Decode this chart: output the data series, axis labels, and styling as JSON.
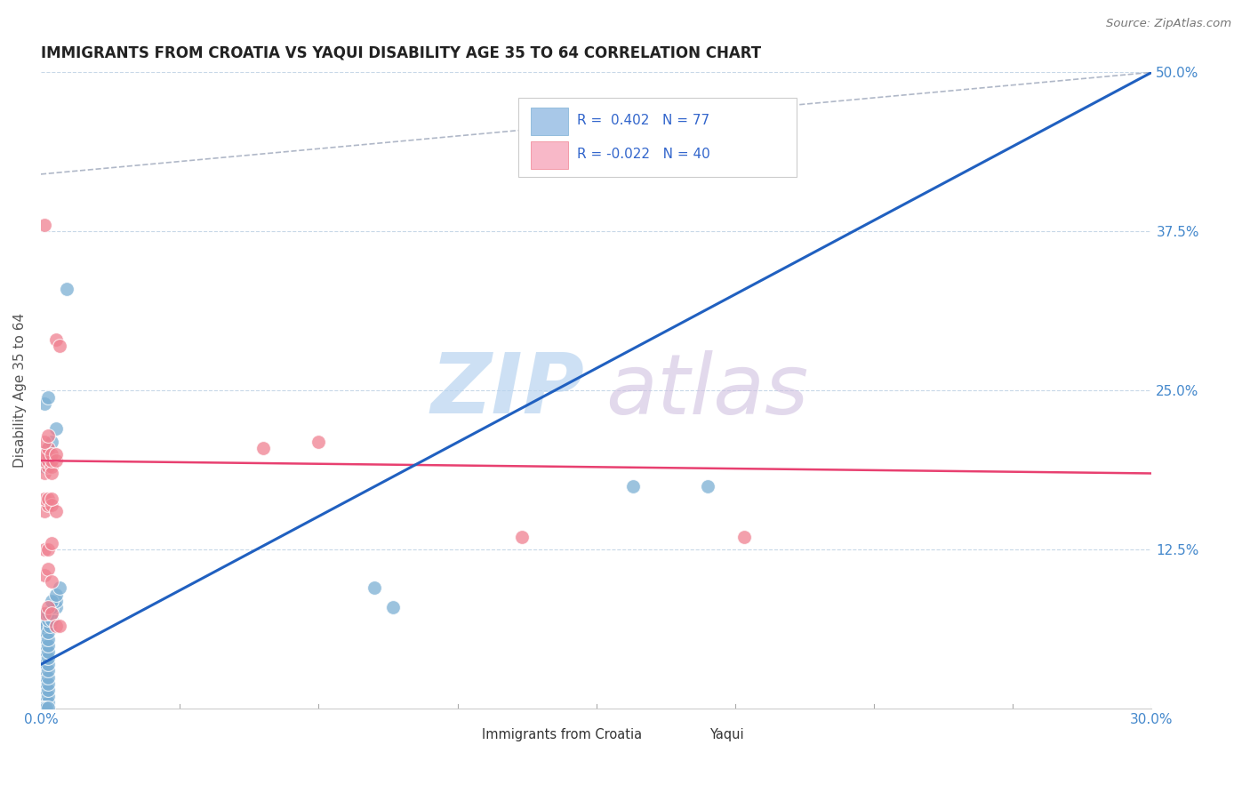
{
  "title": "IMMIGRANTS FROM CROATIA VS YAQUI DISABILITY AGE 35 TO 64 CORRELATION CHART",
  "source": "Source: ZipAtlas.com",
  "ylabel": "Disability Age 35 to 64",
  "blue_color": "#7bafd4",
  "pink_color": "#f08090",
  "trendline_blue_color": "#2060c0",
  "trendline_pink_color": "#e84070",
  "watermark_zip": "ZIP",
  "watermark_atlas": "atlas",
  "xlim": [
    0.0,
    0.3
  ],
  "ylim": [
    0.0,
    0.5
  ],
  "blue_points": [
    [
      0.0005,
      0.005
    ],
    [
      0.001,
      0.005
    ],
    [
      0.001,
      0.01
    ],
    [
      0.0015,
      0.005
    ],
    [
      0.0005,
      0.01
    ],
    [
      0.001,
      0.015
    ],
    [
      0.0015,
      0.01
    ],
    [
      0.002,
      0.005
    ],
    [
      0.0005,
      0.015
    ],
    [
      0.001,
      0.02
    ],
    [
      0.0015,
      0.015
    ],
    [
      0.002,
      0.01
    ],
    [
      0.0005,
      0.02
    ],
    [
      0.001,
      0.025
    ],
    [
      0.0015,
      0.02
    ],
    [
      0.002,
      0.015
    ],
    [
      0.0005,
      0.025
    ],
    [
      0.001,
      0.03
    ],
    [
      0.0015,
      0.025
    ],
    [
      0.002,
      0.02
    ],
    [
      0.0005,
      0.03
    ],
    [
      0.001,
      0.035
    ],
    [
      0.0015,
      0.03
    ],
    [
      0.002,
      0.025
    ],
    [
      0.0005,
      0.035
    ],
    [
      0.001,
      0.04
    ],
    [
      0.0015,
      0.035
    ],
    [
      0.002,
      0.03
    ],
    [
      0.0005,
      0.04
    ],
    [
      0.001,
      0.045
    ],
    [
      0.0015,
      0.04
    ],
    [
      0.002,
      0.035
    ],
    [
      0.0005,
      0.045
    ],
    [
      0.001,
      0.05
    ],
    [
      0.0015,
      0.045
    ],
    [
      0.002,
      0.04
    ],
    [
      0.0005,
      0.05
    ],
    [
      0.001,
      0.055
    ],
    [
      0.0015,
      0.05
    ],
    [
      0.002,
      0.045
    ],
    [
      0.0005,
      0.055
    ],
    [
      0.001,
      0.06
    ],
    [
      0.0015,
      0.055
    ],
    [
      0.002,
      0.05
    ],
    [
      0.0005,
      0.06
    ],
    [
      0.001,
      0.065
    ],
    [
      0.0015,
      0.06
    ],
    [
      0.002,
      0.055
    ],
    [
      0.001,
      0.07
    ],
    [
      0.0015,
      0.065
    ],
    [
      0.002,
      0.06
    ],
    [
      0.0025,
      0.065
    ],
    [
      0.001,
      0.075
    ],
    [
      0.002,
      0.07
    ],
    [
      0.003,
      0.07
    ],
    [
      0.002,
      0.075
    ],
    [
      0.003,
      0.075
    ],
    [
      0.004,
      0.08
    ],
    [
      0.003,
      0.08
    ],
    [
      0.004,
      0.085
    ],
    [
      0.003,
      0.085
    ],
    [
      0.004,
      0.09
    ],
    [
      0.005,
      0.095
    ],
    [
      0.001,
      0.19
    ],
    [
      0.002,
      0.205
    ],
    [
      0.003,
      0.21
    ],
    [
      0.004,
      0.22
    ],
    [
      0.001,
      0.24
    ],
    [
      0.002,
      0.245
    ],
    [
      0.007,
      0.33
    ],
    [
      0.16,
      0.175
    ],
    [
      0.18,
      0.175
    ],
    [
      0.09,
      0.095
    ],
    [
      0.095,
      0.08
    ],
    [
      0.0005,
      0.001
    ],
    [
      0.001,
      0.001
    ],
    [
      0.0015,
      0.001
    ],
    [
      0.002,
      0.001
    ]
  ],
  "pink_points": [
    [
      0.001,
      0.185
    ],
    [
      0.002,
      0.19
    ],
    [
      0.001,
      0.195
    ],
    [
      0.002,
      0.195
    ],
    [
      0.003,
      0.19
    ],
    [
      0.003,
      0.185
    ],
    [
      0.002,
      0.2
    ],
    [
      0.003,
      0.195
    ],
    [
      0.001,
      0.2
    ],
    [
      0.002,
      0.205
    ],
    [
      0.003,
      0.2
    ],
    [
      0.004,
      0.195
    ],
    [
      0.001,
      0.21
    ],
    [
      0.002,
      0.215
    ],
    [
      0.004,
      0.2
    ],
    [
      0.001,
      0.155
    ],
    [
      0.002,
      0.16
    ],
    [
      0.001,
      0.165
    ],
    [
      0.002,
      0.165
    ],
    [
      0.003,
      0.16
    ],
    [
      0.004,
      0.155
    ],
    [
      0.003,
      0.165
    ],
    [
      0.001,
      0.125
    ],
    [
      0.002,
      0.125
    ],
    [
      0.003,
      0.13
    ],
    [
      0.001,
      0.105
    ],
    [
      0.002,
      0.11
    ],
    [
      0.003,
      0.1
    ],
    [
      0.001,
      0.075
    ],
    [
      0.002,
      0.08
    ],
    [
      0.003,
      0.075
    ],
    [
      0.004,
      0.065
    ],
    [
      0.005,
      0.065
    ],
    [
      0.001,
      0.38
    ],
    [
      0.004,
      0.29
    ],
    [
      0.005,
      0.285
    ],
    [
      0.06,
      0.205
    ],
    [
      0.075,
      0.21
    ],
    [
      0.13,
      0.135
    ],
    [
      0.19,
      0.135
    ]
  ],
  "blue_line": {
    "x0": 0.0,
    "y0": 0.035,
    "x1": 0.3,
    "y1": 0.5
  },
  "pink_line": {
    "x0": 0.0,
    "y0": 0.195,
    "x1": 0.3,
    "y1": 0.185
  },
  "dash_line": {
    "x0": 0.0,
    "y0": 0.42,
    "x1": 0.3,
    "y1": 0.5
  },
  "dash_line_extended": {
    "x0": 0.0,
    "y0": 0.0,
    "x1": 0.3,
    "y1": 0.5
  }
}
